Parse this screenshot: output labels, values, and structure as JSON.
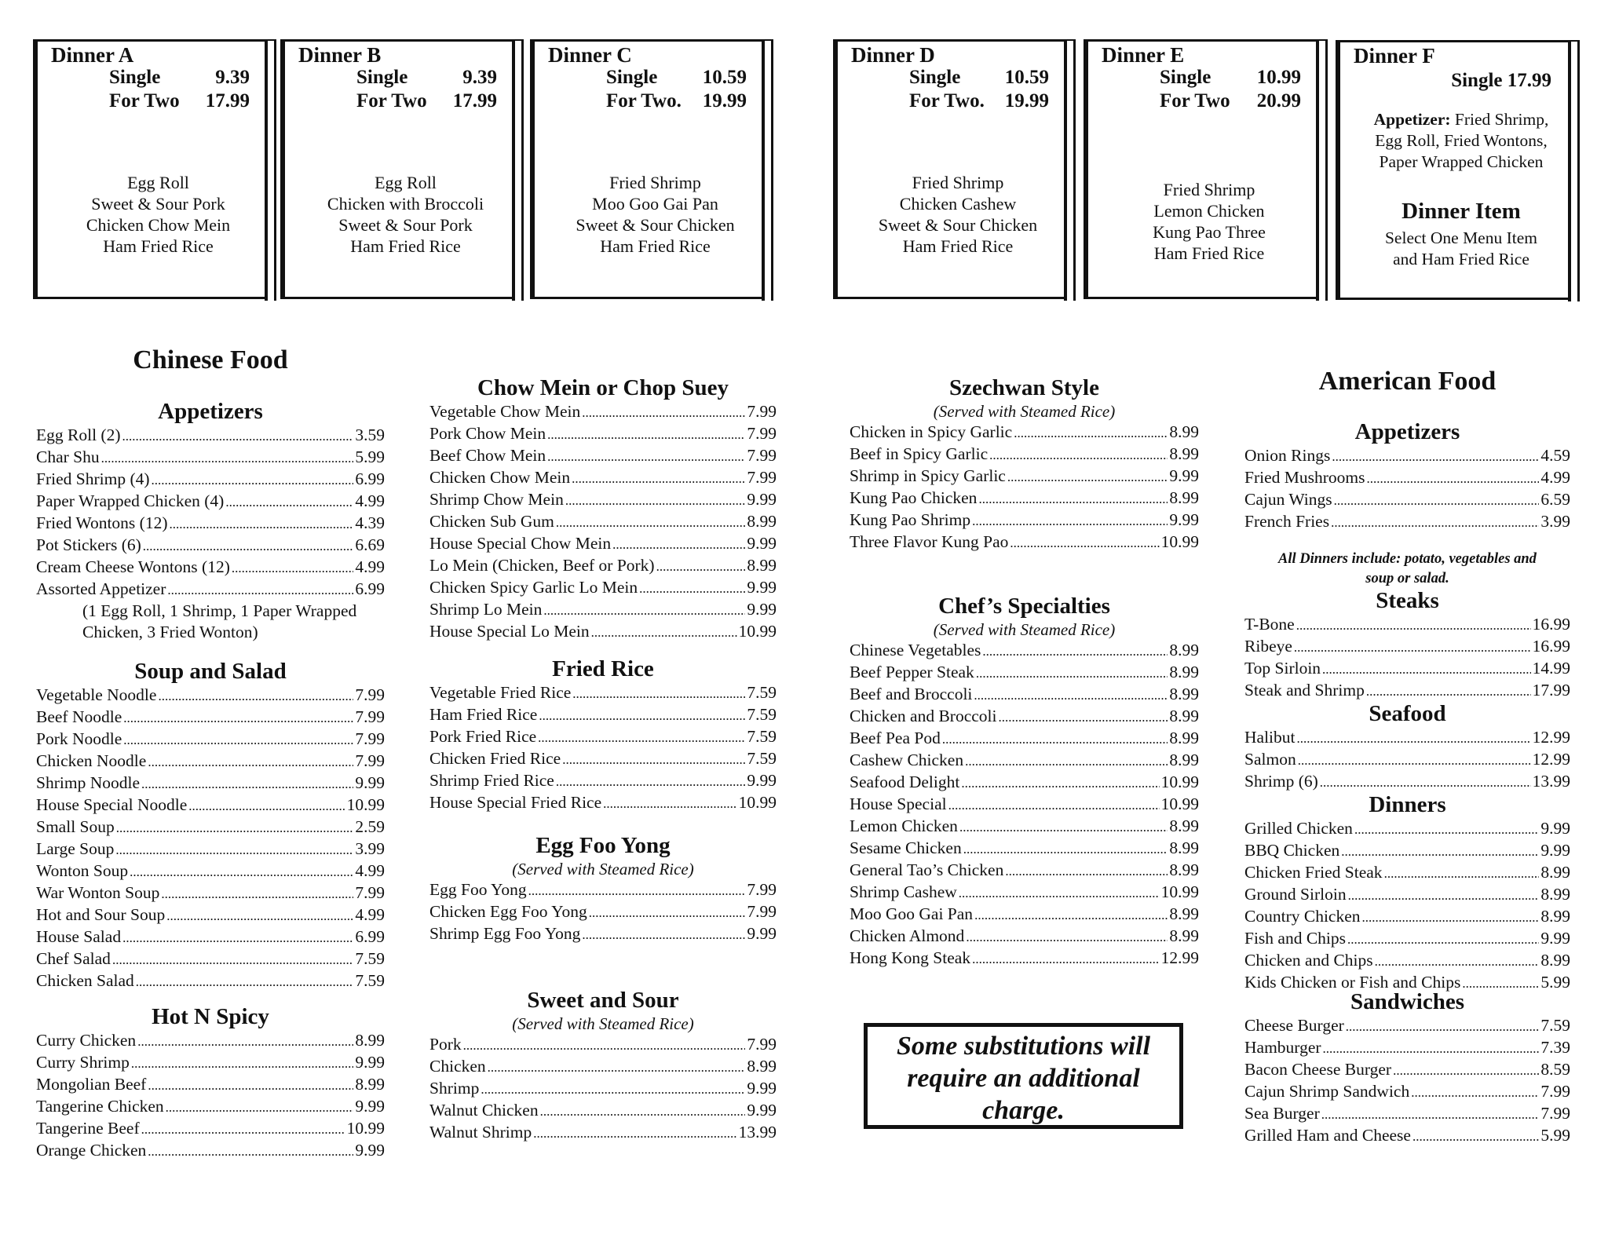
{
  "dinners": [
    {
      "name": "Dinner A",
      "single_label": "Single",
      "single": "9.39",
      "two_label": "For Two",
      "two": "17.99",
      "items": [
        "Egg Roll",
        "Sweet & Sour Pork",
        "Chicken Chow Mein",
        "Ham Fried Rice"
      ]
    },
    {
      "name": "Dinner B",
      "single_label": "Single",
      "single": "9.39",
      "two_label": "For Two",
      "two": "17.99",
      "items": [
        "Egg Roll",
        "Chicken with Broccoli",
        "Sweet & Sour Pork",
        "Ham Fried Rice"
      ]
    },
    {
      "name": "Dinner C",
      "single_label": "Single",
      "single": "10.59",
      "two_label": "For Two.",
      "two": "19.99",
      "items": [
        "Fried Shrimp",
        "Moo Goo Gai Pan",
        "Sweet & Sour Chicken",
        "Ham Fried Rice"
      ]
    },
    {
      "name": "Dinner D",
      "single_label": "Single",
      "single": "10.59",
      "two_label": "For Two.",
      "two": "19.99",
      "items": [
        "Fried Shrimp",
        "Chicken Cashew",
        "Sweet & Sour Chicken",
        "Ham Fried Rice"
      ]
    },
    {
      "name": "Dinner E",
      "single_label": "Single",
      "single": "10.99",
      "two_label": "For Two",
      "two": "20.99",
      "items": [
        "Fried Shrimp",
        "Lemon Chicken",
        "Kung Pao Three",
        "Ham Fried Rice"
      ]
    }
  ],
  "dinner_f": {
    "name": "Dinner F",
    "single": "Single 17.99",
    "appetizer_label": "Appetizer:",
    "appetizer_lines": [
      " Fried Shrimp,",
      "Egg Roll, Fried Wontons,",
      "Paper Wrapped Chicken"
    ],
    "item_title": "Dinner Item",
    "item_lines": [
      "Select One Menu Item",
      "and Ham Fried Rice"
    ]
  },
  "headings": {
    "chinese": "Chinese Food",
    "american": "American Food"
  },
  "sections": [
    {
      "title": "Appetizers",
      "items": [
        [
          "Egg Roll (2)",
          "3.59"
        ],
        [
          "Char Shu",
          "5.99"
        ],
        [
          "Fried Shrimp (4)",
          "6.99"
        ],
        [
          "Paper Wrapped Chicken (4)",
          "4.99"
        ],
        [
          "Fried Wontons (12)",
          "4.39"
        ],
        [
          "Pot Stickers (6)",
          "6.69"
        ],
        [
          "Cream Cheese Wontons (12)",
          "4.99"
        ],
        [
          "Assorted Appetizer",
          "6.99"
        ]
      ],
      "notes": [
        "(1 Egg Roll, 1 Shrimp, 1 Paper Wrapped",
        "Chicken, 3 Fried Wonton)"
      ]
    },
    {
      "title": "Soup and Salad",
      "items": [
        [
          "Vegetable Noodle",
          "7.99"
        ],
        [
          "Beef Noodle",
          "7.99"
        ],
        [
          "Pork Noodle",
          "7.99"
        ],
        [
          "Chicken Noodle",
          "7.99"
        ],
        [
          "Shrimp Noodle",
          "9.99"
        ],
        [
          "House Special Noodle",
          "10.99"
        ],
        [
          "Small Soup",
          "2.59"
        ],
        [
          "Large Soup",
          "3.99"
        ],
        [
          "Wonton Soup",
          "4.99"
        ],
        [
          "War Wonton Soup",
          "7.99"
        ],
        [
          "Hot and Sour Soup",
          "4.99"
        ],
        [
          "House Salad",
          "6.99"
        ],
        [
          "Chef Salad",
          "7.59"
        ],
        [
          "Chicken Salad",
          "7.59"
        ]
      ]
    },
    {
      "title": "Hot N Spicy",
      "items": [
        [
          "Curry Chicken",
          "8.99"
        ],
        [
          "Curry Shrimp",
          "9.99"
        ],
        [
          "Mongolian Beef",
          "8.99"
        ],
        [
          "Tangerine Chicken",
          "9.99"
        ],
        [
          "Tangerine Beef",
          "10.99"
        ],
        [
          "Orange Chicken",
          "9.99"
        ]
      ]
    },
    {
      "title": "Chow Mein or Chop Suey",
      "items": [
        [
          "Vegetable Chow Mein",
          "7.99"
        ],
        [
          "Pork Chow Mein",
          "7.99"
        ],
        [
          "Beef Chow Mein",
          "7.99"
        ],
        [
          "Chicken Chow Mein",
          "7.99"
        ],
        [
          "Shrimp Chow Mein",
          "9.99"
        ],
        [
          "Chicken Sub Gum",
          "8.99"
        ],
        [
          "House Special Chow Mein",
          "9.99"
        ],
        [
          "Lo Mein (Chicken, Beef or Pork)",
          "8.99"
        ],
        [
          "Chicken Spicy Garlic Lo Mein",
          "9.99"
        ],
        [
          "Shrimp Lo Mein",
          "9.99"
        ],
        [
          "House Special Lo Mein",
          "10.99"
        ]
      ]
    },
    {
      "title": "Fried Rice",
      "items": [
        [
          "Vegetable Fried Rice",
          "7.59"
        ],
        [
          "Ham Fried Rice",
          "7.59"
        ],
        [
          "Pork Fried Rice",
          "7.59"
        ],
        [
          "Chicken Fried Rice",
          "7.59"
        ],
        [
          "Shrimp Fried Rice",
          "9.99"
        ],
        [
          "House Special Fried Rice",
          "10.99"
        ]
      ]
    },
    {
      "title": "Egg Foo Yong",
      "subtitle": "(Served with Steamed Rice)",
      "items": [
        [
          "Egg Foo Yong",
          "7.99"
        ],
        [
          "Chicken Egg Foo Yong",
          "7.99"
        ],
        [
          "Shrimp Egg Foo Yong",
          "9.99"
        ]
      ]
    },
    {
      "title": "Sweet and Sour",
      "subtitle": "(Served with Steamed Rice)",
      "items": [
        [
          "Pork",
          "7.99"
        ],
        [
          "Chicken",
          "8.99"
        ],
        [
          "Shrimp",
          "9.99"
        ],
        [
          "Walnut Chicken",
          "9.99"
        ],
        [
          "Walnut Shrimp",
          "13.99"
        ]
      ]
    },
    {
      "title": "Szechwan Style",
      "subtitle": "(Served with Steamed Rice)",
      "items": [
        [
          "Chicken in Spicy Garlic",
          "8.99"
        ],
        [
          "Beef in Spicy Garlic",
          "8.99"
        ],
        [
          "Shrimp in Spicy Garlic",
          "9.99"
        ],
        [
          "Kung Pao Chicken",
          "8.99"
        ],
        [
          "Kung Pao Shrimp",
          "9.99"
        ],
        [
          "Three Flavor Kung Pao",
          "10.99"
        ]
      ]
    },
    {
      "title": "Chef’s Specialties",
      "subtitle": "(Served with Steamed Rice)",
      "items": [
        [
          "Chinese Vegetables",
          "8.99"
        ],
        [
          "Beef Pepper Steak",
          "8.99"
        ],
        [
          "Beef and Broccoli",
          "8.99"
        ],
        [
          "Chicken and Broccoli",
          "8.99"
        ],
        [
          "Beef Pea Pod",
          "8.99"
        ],
        [
          "Cashew Chicken",
          "8.99"
        ],
        [
          "Seafood Delight",
          "10.99"
        ],
        [
          "House Special",
          "10.99"
        ],
        [
          "Lemon Chicken",
          "8.99"
        ],
        [
          "Sesame Chicken",
          "8.99"
        ],
        [
          "General Tao’s Chicken",
          "8.99"
        ],
        [
          "Shrimp Cashew",
          "10.99"
        ],
        [
          "Moo Goo Gai Pan",
          "8.99"
        ],
        [
          "Chicken Almond",
          "8.99"
        ],
        [
          "Hong Kong Steak",
          "12.99"
        ]
      ]
    },
    {
      "title": "Appetizers",
      "items": [
        [
          "Onion Rings",
          "4.59"
        ],
        [
          "Fried Mushrooms",
          "4.99"
        ],
        [
          "Cajun Wings",
          "6.59"
        ],
        [
          "French Fries",
          "3.99"
        ]
      ]
    },
    {
      "title": "Steaks",
      "items": [
        [
          "T-Bone",
          "16.99"
        ],
        [
          "Ribeye",
          "16.99"
        ],
        [
          "Top Sirloin",
          "14.99"
        ],
        [
          "Steak and Shrimp",
          "17.99"
        ]
      ]
    },
    {
      "title": "Seafood",
      "items": [
        [
          "Halibut",
          "12.99"
        ],
        [
          "Salmon",
          "12.99"
        ],
        [
          "Shrimp (6)",
          "13.99"
        ]
      ]
    },
    {
      "title": "Dinners",
      "items": [
        [
          "Grilled Chicken",
          "9.99"
        ],
        [
          "BBQ Chicken",
          "9.99"
        ],
        [
          "Chicken Fried Steak",
          "8.99"
        ],
        [
          "Ground Sirloin",
          "8.99"
        ],
        [
          "Country Chicken",
          "8.99"
        ],
        [
          "Fish and Chips",
          "9.99"
        ],
        [
          "Chicken and Chips",
          "8.99"
        ],
        [
          "Kids Chicken or Fish and Chips",
          "5.99"
        ]
      ]
    },
    {
      "title": "Sandwiches",
      "items": [
        [
          "Cheese Burger",
          "7.59"
        ],
        [
          "Hamburger",
          "7.39"
        ],
        [
          "Bacon Cheese Burger",
          "8.59"
        ],
        [
          "Cajun Shrimp Sandwich",
          "7.99"
        ],
        [
          "Sea Burger",
          "7.99"
        ],
        [
          "Grilled Ham and Cheese",
          "5.99"
        ]
      ]
    }
  ],
  "american_note": [
    "All Dinners include: potato, vegetables and",
    "soup or salad."
  ],
  "substitution_note": [
    "Some substitutions will",
    "require an additional",
    "charge."
  ]
}
